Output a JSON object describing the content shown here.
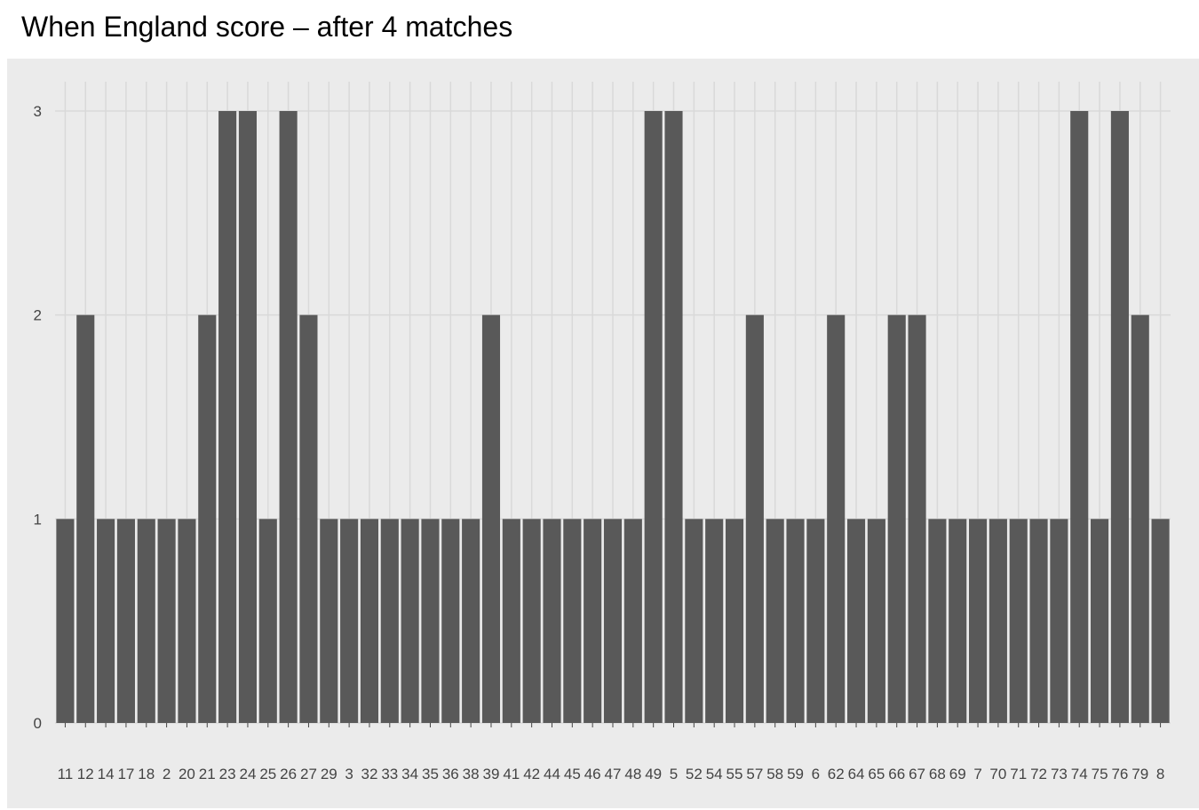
{
  "title": "When England score – after 4 matches",
  "chart_data": {
    "type": "bar",
    "categories": [
      "11",
      "12",
      "14",
      "17",
      "18",
      "2",
      "20",
      "21",
      "23",
      "24",
      "25",
      "26",
      "27",
      "29",
      "3",
      "32",
      "33",
      "34",
      "35",
      "36",
      "38",
      "39",
      "41",
      "42",
      "44",
      "45",
      "46",
      "47",
      "48",
      "49",
      "5",
      "52",
      "54",
      "55",
      "57",
      "58",
      "59",
      "6",
      "62",
      "64",
      "65",
      "66",
      "67",
      "68",
      "69",
      "7",
      "70",
      "71",
      "72",
      "73",
      "74",
      "75",
      "76",
      "79",
      "8"
    ],
    "values": [
      1,
      2,
      1,
      1,
      1,
      1,
      1,
      2,
      3,
      3,
      1,
      3,
      2,
      1,
      1,
      1,
      1,
      1,
      1,
      1,
      1,
      2,
      1,
      1,
      1,
      1,
      1,
      1,
      1,
      3,
      3,
      1,
      1,
      1,
      2,
      1,
      1,
      1,
      2,
      1,
      1,
      2,
      2,
      1,
      1,
      1,
      1,
      1,
      1,
      1,
      3,
      1,
      3,
      2,
      1
    ],
    "yticks": [
      0,
      1,
      2,
      3
    ],
    "ylim": [
      0,
      3.15
    ],
    "grid": true,
    "title": "When England score – after 4 matches",
    "colors": {
      "bar": "#595959",
      "panel": "#ebebeb",
      "grid": "#d9d9d9"
    }
  }
}
